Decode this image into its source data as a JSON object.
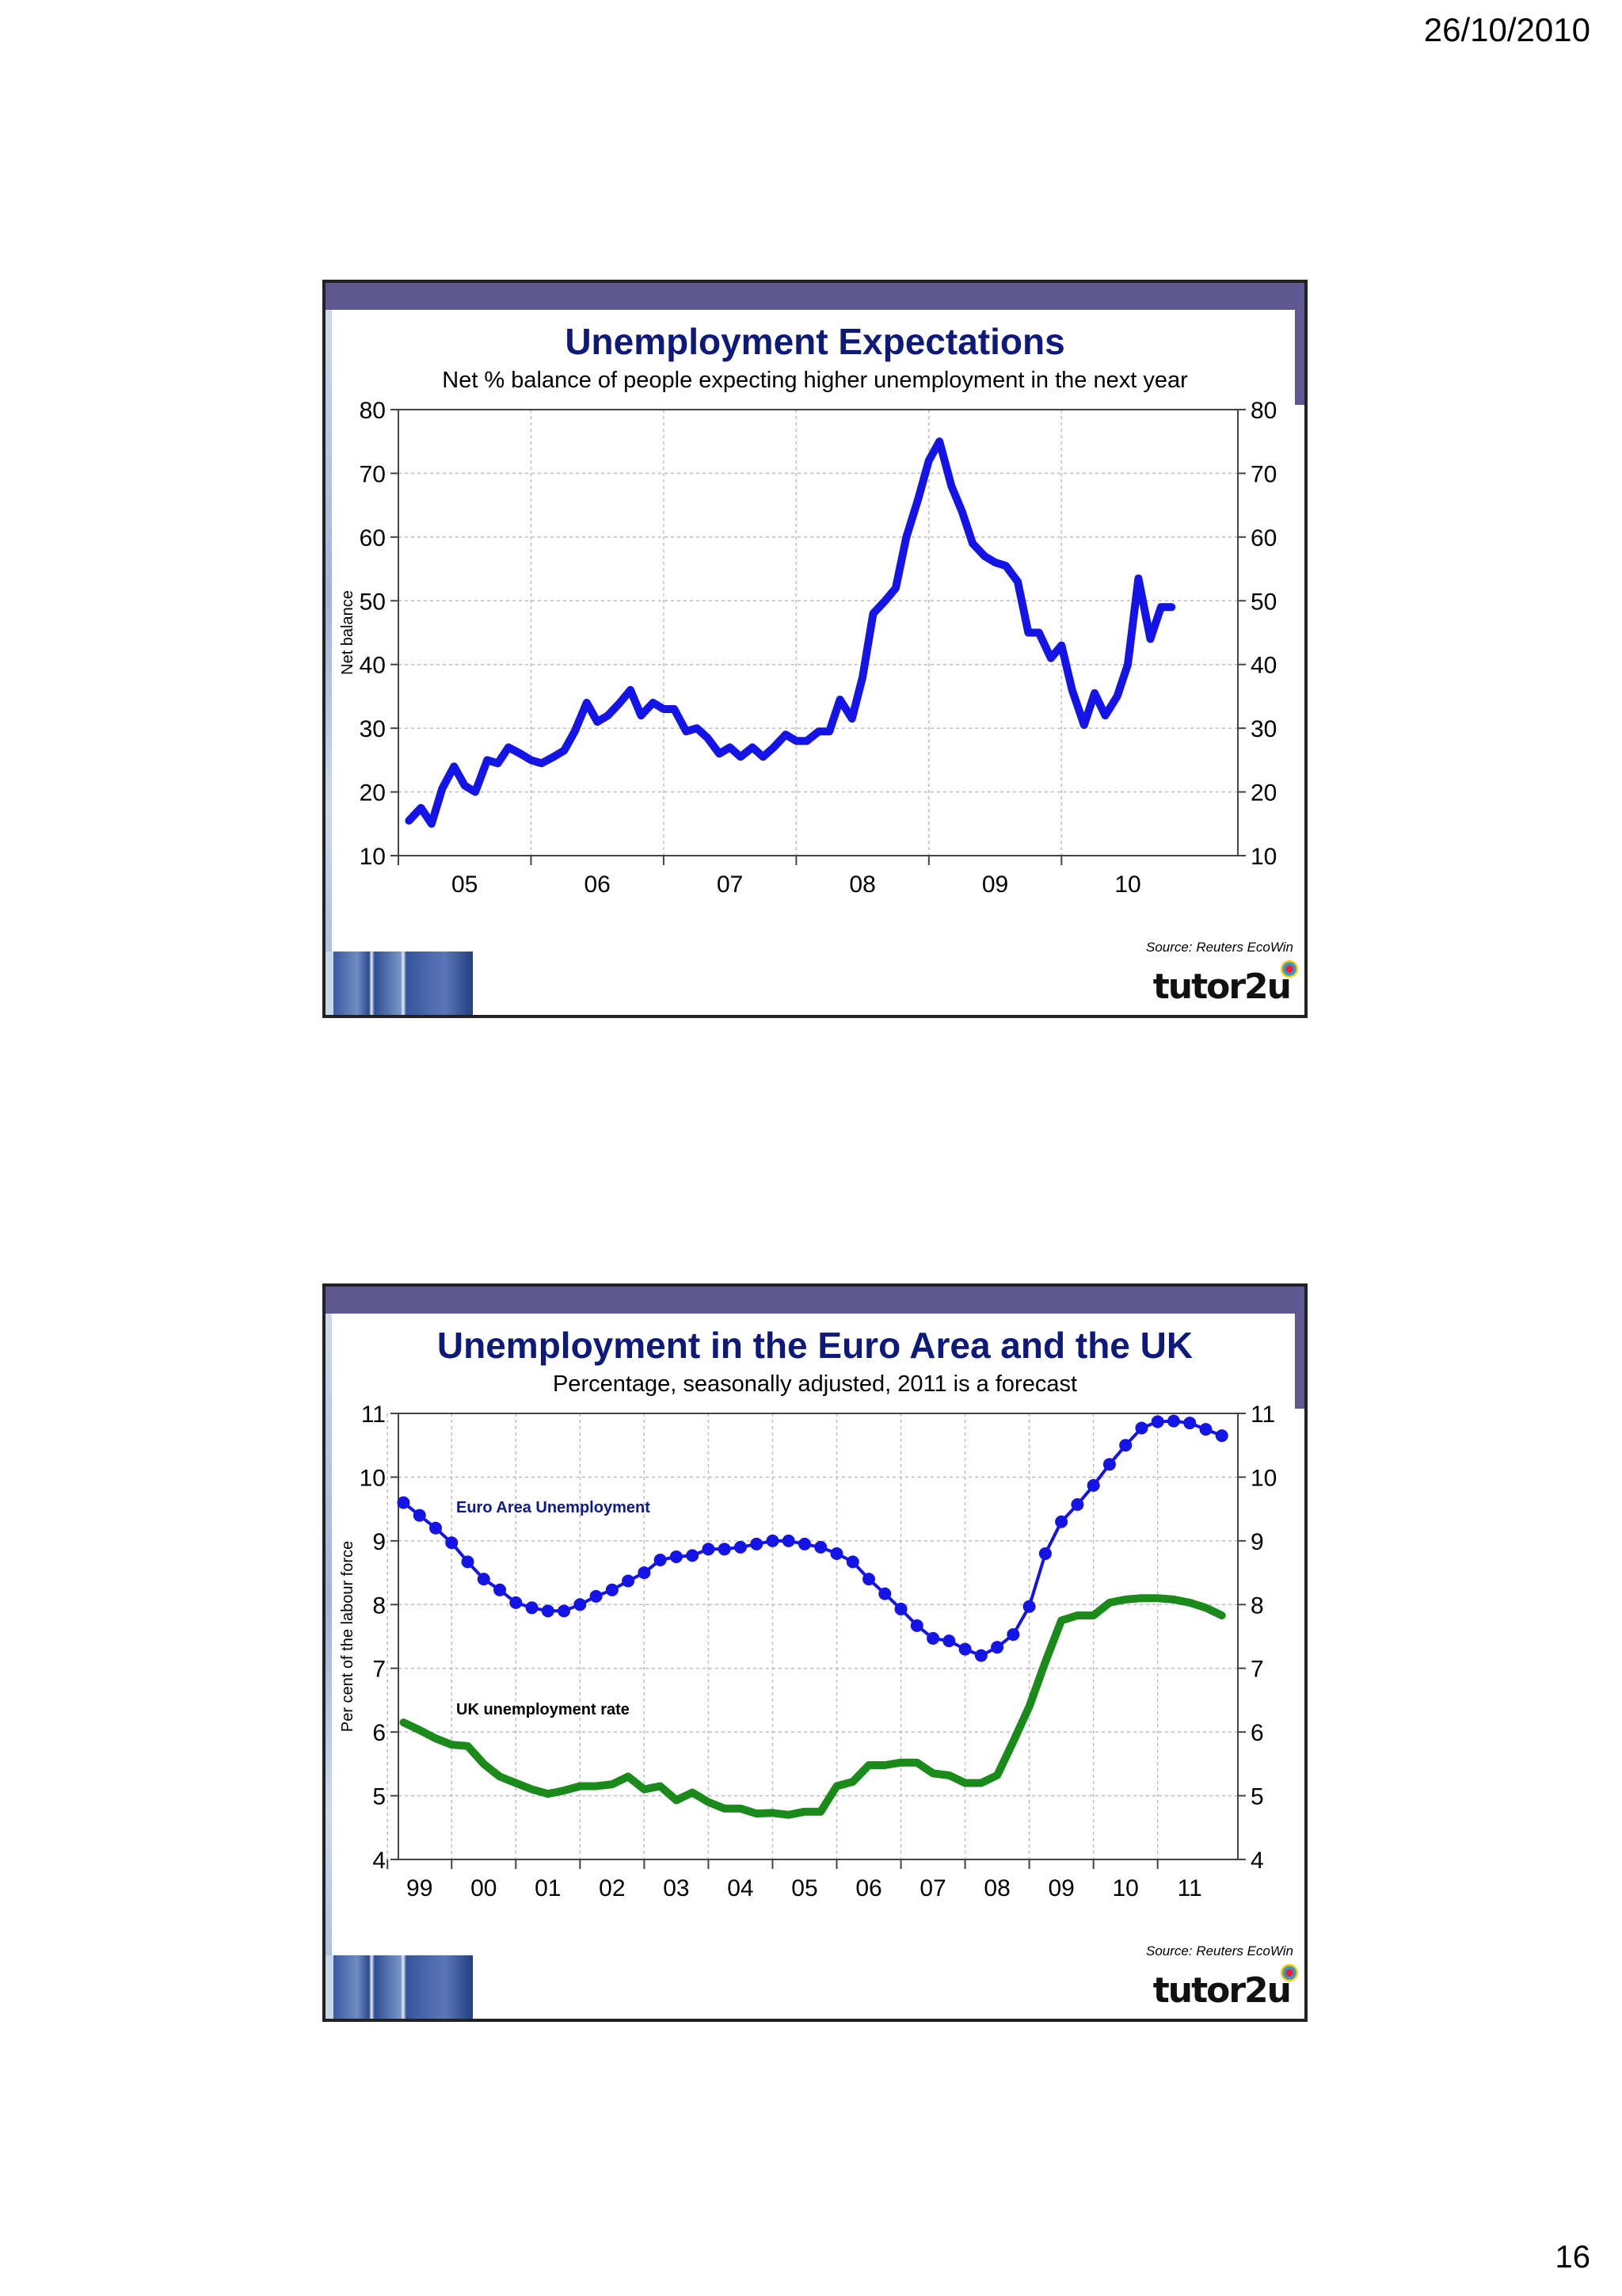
{
  "page": {
    "date": "26/10/2010",
    "page_number": "16"
  },
  "slides": [
    {
      "chart_data": {
        "type": "line",
        "title": "Unemployment Expectations",
        "subtitle": "Net % balance of people expecting higher unemployment in the next year",
        "ylabel": "Net balance",
        "xlabel": "",
        "source": "Source: Reuters EcoWin",
        "logo": "tutor2u",
        "ylim": [
          10,
          80
        ],
        "yticks": [
          10,
          20,
          30,
          40,
          50,
          60,
          70,
          80
        ],
        "xlim": [
          2004.5,
          2010.83
        ],
        "xticks": [
          {
            "label": "05",
            "x": 2005.0
          },
          {
            "label": "06",
            "x": 2006.0
          },
          {
            "label": "07",
            "x": 2007.0
          },
          {
            "label": "08",
            "x": 2008.0
          },
          {
            "label": "09",
            "x": 2009.0
          },
          {
            "label": "10",
            "x": 2010.0
          }
        ],
        "grid": true,
        "series": [
          {
            "color": "#1414e6",
            "markers": false,
            "x": [
              2004.58,
              2004.67,
              2004.75,
              2004.83,
              2004.92,
              2005.0,
              2005.08,
              2005.17,
              2005.25,
              2005.33,
              2005.42,
              2005.5,
              2005.58,
              2005.67,
              2005.75,
              2005.83,
              2005.92,
              2006.0,
              2006.08,
              2006.17,
              2006.25,
              2006.33,
              2006.42,
              2006.5,
              2006.58,
              2006.67,
              2006.75,
              2006.83,
              2006.92,
              2007.0,
              2007.08,
              2007.17,
              2007.25,
              2007.33,
              2007.42,
              2007.5,
              2007.58,
              2007.67,
              2007.75,
              2007.83,
              2007.92,
              2008.0,
              2008.08,
              2008.17,
              2008.25,
              2008.33,
              2008.42,
              2008.5,
              2008.58,
              2008.67,
              2008.75,
              2008.83,
              2008.92,
              2009.0,
              2009.08,
              2009.17,
              2009.25,
              2009.33,
              2009.42,
              2009.5,
              2009.58,
              2009.67,
              2009.75,
              2009.83,
              2009.92,
              2010.0,
              2010.08,
              2010.17,
              2010.25,
              2010.33
            ],
            "y": [
              15.5,
              17.5,
              15,
              20.5,
              24,
              21,
              20,
              25,
              24.5,
              27,
              26,
              25,
              24.5,
              25.5,
              26.5,
              29.5,
              34,
              31,
              32,
              34,
              36,
              32,
              34,
              33,
              33,
              29.5,
              30,
              28.5,
              26,
              27,
              25.5,
              27,
              25.5,
              27,
              29,
              28,
              28,
              29.5,
              29.5,
              34.5,
              31.5,
              38,
              48,
              50,
              52,
              60,
              66,
              72,
              75,
              68,
              64,
              59,
              57,
              56,
              55.5,
              53,
              45,
              45,
              41,
              43,
              36,
              30.5,
              35.5,
              32,
              35,
              40,
              53.5,
              44,
              49,
              49
            ]
          }
        ]
      }
    },
    {
      "chart_data": {
        "type": "line",
        "title": "Unemployment in the Euro Area and the UK",
        "subtitle": "Percentage, seasonally adjusted, 2011 is a forecast",
        "ylabel": "Per cent of the labour force",
        "xlabel": "",
        "source": "Source: Reuters EcoWin",
        "logo": "tutor2u",
        "ylim": [
          4,
          11
        ],
        "yticks": [
          4,
          5,
          6,
          7,
          8,
          9,
          10,
          11
        ],
        "xlim": [
          1998.67,
          2011.75
        ],
        "xticks": [
          {
            "label": "99",
            "x": 1999.0
          },
          {
            "label": "00",
            "x": 2000.0
          },
          {
            "label": "01",
            "x": 2001.0
          },
          {
            "label": "02",
            "x": 2002.0
          },
          {
            "label": "03",
            "x": 2003.0
          },
          {
            "label": "04",
            "x": 2004.0
          },
          {
            "label": "05",
            "x": 2005.0
          },
          {
            "label": "06",
            "x": 2006.0
          },
          {
            "label": "07",
            "x": 2007.0
          },
          {
            "label": "08",
            "x": 2008.0
          },
          {
            "label": "09",
            "x": 2009.0
          },
          {
            "label": "10",
            "x": 2010.0
          },
          {
            "label": "11",
            "x": 2011.0
          }
        ],
        "grid": true,
        "series": [
          {
            "name": "Euro Area Unemployment",
            "color": "#1414e6",
            "markers": true,
            "x": [
              1998.75,
              1999.0,
              1999.25,
              1999.5,
              1999.75,
              2000.0,
              2000.25,
              2000.5,
              2000.75,
              2001.0,
              2001.25,
              2001.5,
              2001.75,
              2002.0,
              2002.25,
              2002.5,
              2002.75,
              2003.0,
              2003.25,
              2003.5,
              2003.75,
              2004.0,
              2004.25,
              2004.5,
              2004.75,
              2005.0,
              2005.25,
              2005.5,
              2005.75,
              2006.0,
              2006.25,
              2006.5,
              2006.75,
              2007.0,
              2007.25,
              2007.5,
              2007.75,
              2008.0,
              2008.25,
              2008.5,
              2008.75,
              2009.0,
              2009.25,
              2009.5,
              2009.75,
              2010.0,
              2010.25,
              2010.5,
              2010.75,
              2011.0,
              2011.25,
              2011.5
            ],
            "y": [
              9.6,
              9.4,
              9.2,
              8.97,
              8.67,
              8.4,
              8.23,
              8.03,
              7.95,
              7.9,
              7.9,
              8.0,
              8.13,
              8.23,
              8.37,
              8.5,
              8.7,
              8.75,
              8.77,
              8.87,
              8.87,
              8.9,
              8.95,
              9.0,
              9.0,
              8.95,
              8.9,
              8.8,
              8.67,
              8.4,
              8.17,
              7.93,
              7.67,
              7.47,
              7.43,
              7.3,
              7.2,
              7.33,
              7.53,
              7.97,
              8.8,
              9.3,
              9.57,
              9.87,
              10.2,
              10.5,
              10.77,
              10.87,
              10.88,
              10.85,
              10.75,
              10.65
            ]
          },
          {
            "name": "UK unemployment rate",
            "color": "#1a8a1a",
            "markers": false,
            "x": [
              1998.75,
              1999.0,
              1999.25,
              1999.5,
              1999.75,
              2000.0,
              2000.25,
              2000.5,
              2000.75,
              2001.0,
              2001.25,
              2001.5,
              2001.75,
              2002.0,
              2002.25,
              2002.5,
              2002.75,
              2003.0,
              2003.25,
              2003.5,
              2003.75,
              2004.0,
              2004.25,
              2004.5,
              2004.75,
              2005.0,
              2005.25,
              2005.5,
              2005.75,
              2006.0,
              2006.25,
              2006.5,
              2006.75,
              2007.0,
              2007.25,
              2007.5,
              2007.75,
              2008.0,
              2008.25,
              2008.5,
              2008.75,
              2009.0,
              2009.25,
              2009.5,
              2009.75,
              2010.0,
              2010.25,
              2010.5,
              2010.75,
              2011.0,
              2011.25,
              2011.5
            ],
            "y": [
              6.15,
              6.03,
              5.9,
              5.8,
              5.78,
              5.5,
              5.3,
              5.2,
              5.1,
              5.03,
              5.08,
              5.15,
              5.15,
              5.18,
              5.3,
              5.1,
              5.15,
              4.93,
              5.05,
              4.9,
              4.8,
              4.8,
              4.72,
              4.73,
              4.7,
              4.75,
              4.75,
              5.15,
              5.22,
              5.48,
              5.48,
              5.52,
              5.52,
              5.35,
              5.32,
              5.2,
              5.2,
              5.32,
              5.85,
              6.4,
              7.1,
              7.75,
              7.83,
              7.83,
              8.03,
              8.08,
              8.1,
              8.1,
              8.08,
              8.03,
              7.95,
              7.83
            ]
          }
        ]
      }
    }
  ]
}
